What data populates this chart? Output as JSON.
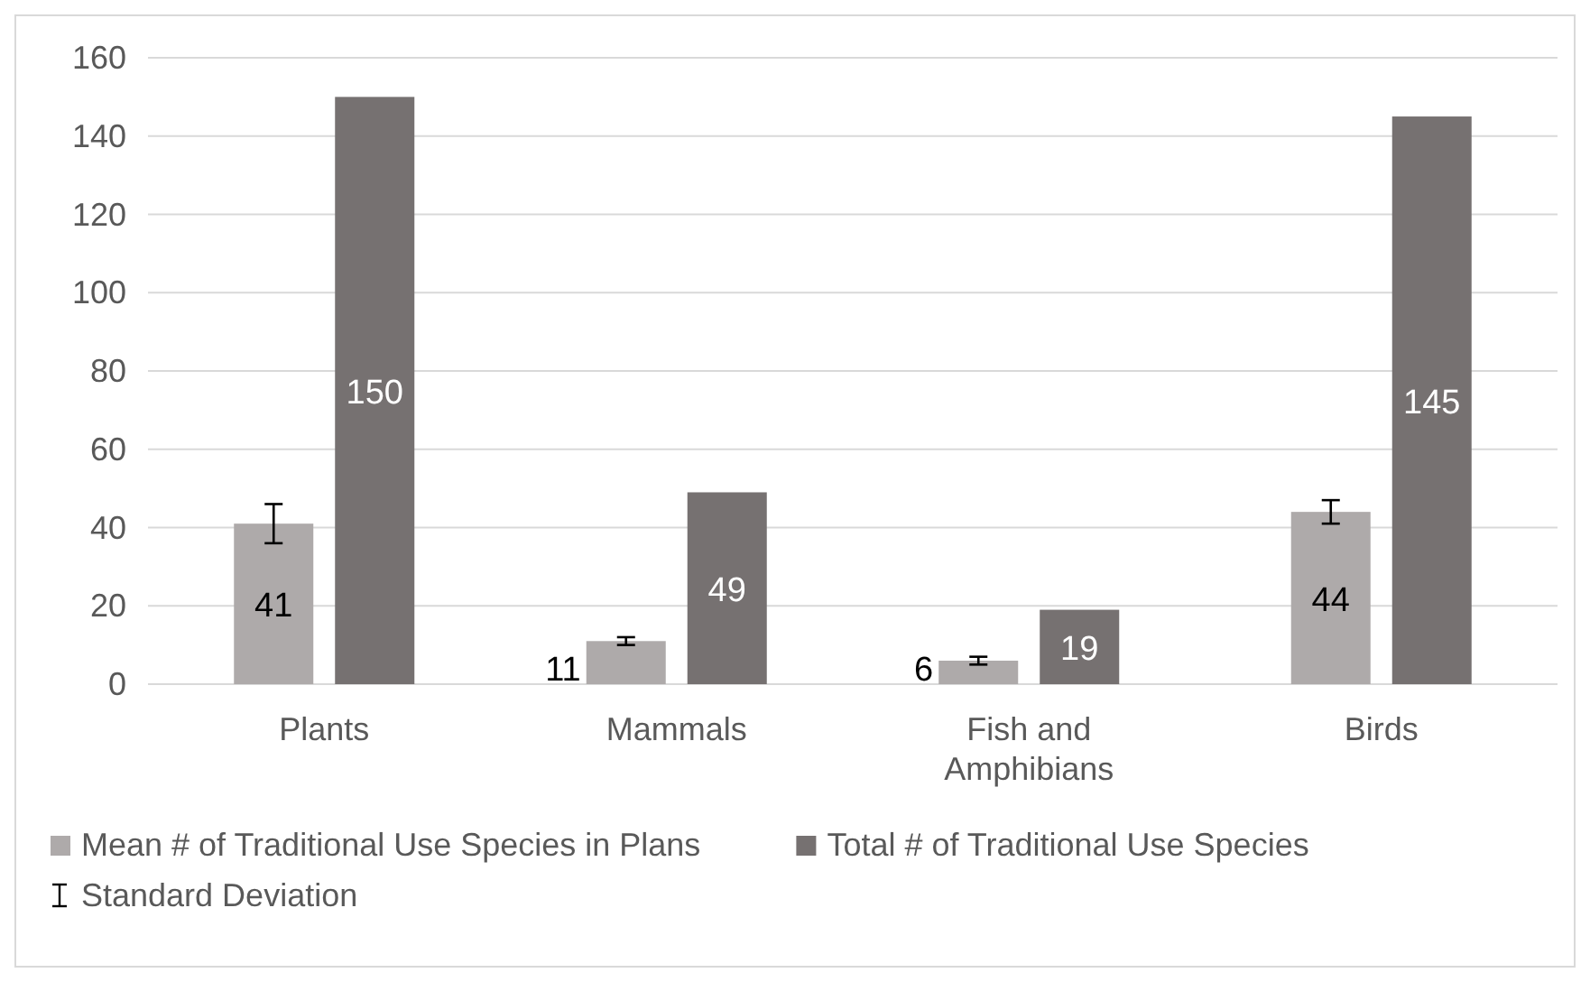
{
  "chart_data": {
    "type": "bar",
    "categories": [
      "Plants",
      "Mammals",
      "Fish and Amphibians",
      "Birds"
    ],
    "series": [
      {
        "name": "Mean # of Traditional Use Species in Plans",
        "color": "#aeaaaa",
        "values": [
          41,
          11,
          6,
          44
        ],
        "errors": [
          5,
          1,
          1,
          3
        ]
      },
      {
        "name": "Total # of Traditional Use Species",
        "color": "#767171",
        "values": [
          150,
          49,
          19,
          145
        ]
      }
    ],
    "ylim": [
      0,
      160
    ],
    "yticks": [
      0,
      20,
      40,
      60,
      80,
      100,
      120,
      140,
      160
    ],
    "grid": "y",
    "legend": "bottom",
    "data_labels": true,
    "annotations": [
      "Standard Deviation"
    ]
  }
}
